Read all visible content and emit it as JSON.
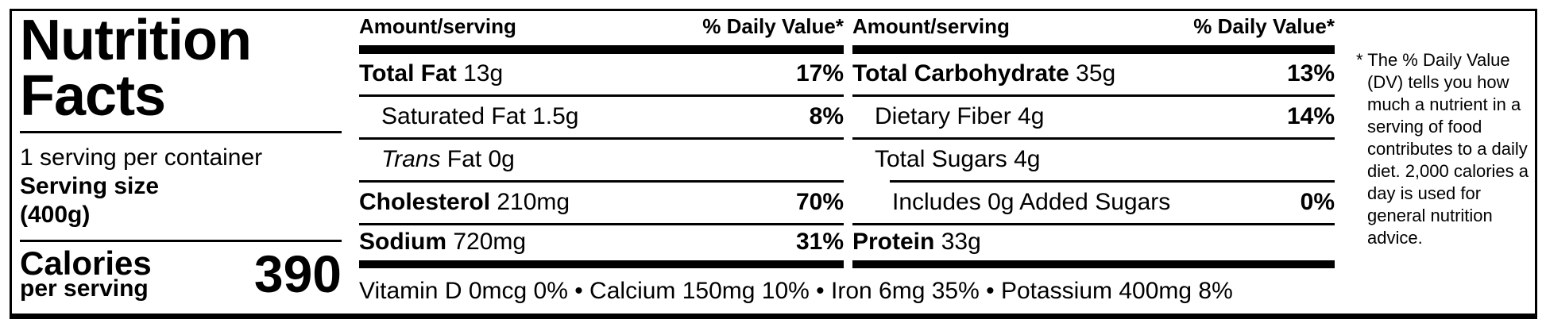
{
  "label": {
    "title": "Nutrition Facts",
    "servings_per_container": "1 serving per container",
    "serving_size_label": "Serving size",
    "serving_size_value": "(400g)",
    "calories_label": "Calories",
    "calories_sublabel": "per serving",
    "calories_value": "390",
    "columns": [
      {
        "header": {
          "amount": "Amount/serving",
          "daily_value": "% Daily Value*"
        },
        "rows": [
          {
            "bold": "Total Fat",
            "rest": " 13g",
            "pct": "17%"
          },
          {
            "rest": "Saturated Fat 1.5g",
            "pct": "8%"
          },
          {
            "italic": "Trans",
            "rest": " Fat 0g"
          },
          {
            "bold": "Cholesterol",
            "rest": " 210mg",
            "pct": "70%"
          },
          {
            "bold": "Sodium",
            "rest": " 720mg",
            "pct": "31%"
          }
        ]
      },
      {
        "header": {
          "amount": "Amount/serving",
          "daily_value": "% Daily Value*"
        },
        "rows": [
          {
            "bold": "Total Carbohydrate",
            "rest": " 35g",
            "pct": "13%"
          },
          {
            "rest": "Dietary Fiber 4g",
            "pct": "14%"
          },
          {
            "rest": "Total Sugars 4g"
          },
          {
            "rest": "Includes 0g Added Sugars",
            "pct": "0%"
          },
          {
            "bold": "Protein",
            "rest": " 33g"
          }
        ]
      }
    ],
    "micronutrients": "Vitamin D 0mcg 0% • Calcium 150mg 10% • Iron 6mg 35% • Potassium 400mg 8%",
    "footnote": "* The % Daily Value (DV) tells you how much a nutrient in a serving of food contributes to a daily diet. 2,000 calories a day is used for general nutrition advice.",
    "colors": {
      "ink": "#000000",
      "background": "#ffffff"
    }
  }
}
